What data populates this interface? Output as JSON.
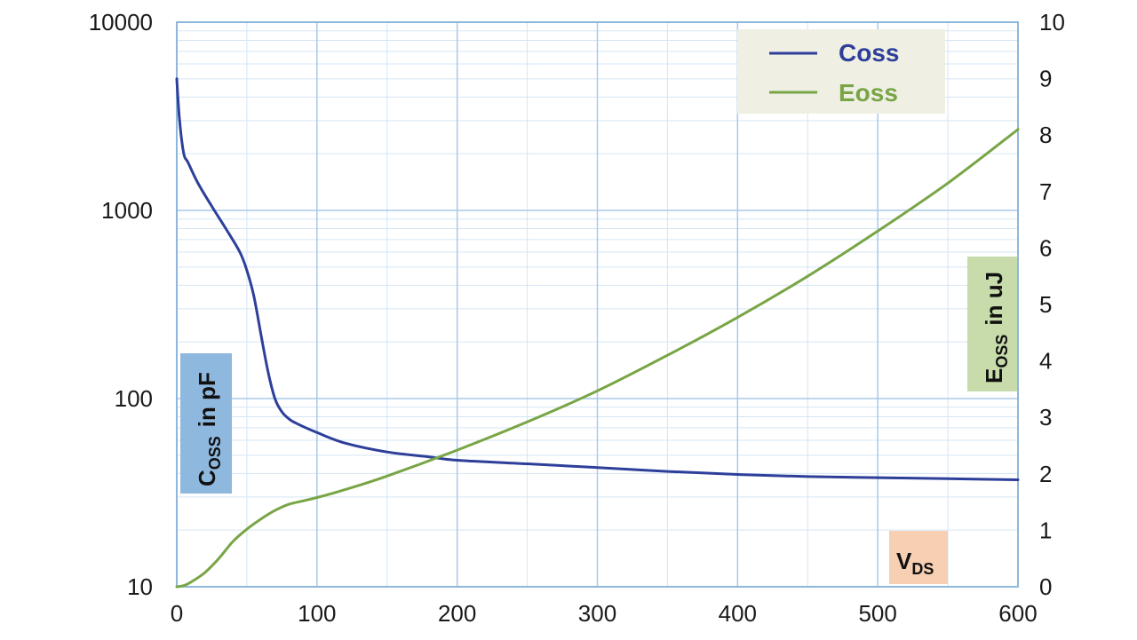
{
  "chart_data": {
    "type": "line",
    "x_axis": {
      "label_main": "V",
      "label_sub": "DS",
      "range": [
        0,
        600
      ],
      "ticks": [
        "0",
        "100",
        "200",
        "300",
        "400",
        "500",
        "600"
      ]
    },
    "y_left": {
      "label_main": "C",
      "label_sub": "OSS",
      "label_rest": "in pF",
      "scale": "log",
      "range": [
        10,
        10000
      ],
      "ticks": [
        "10",
        "100",
        "1000",
        "10000"
      ]
    },
    "y_right": {
      "label_main": "E",
      "label_sub": "OSS",
      "label_rest": "in uJ",
      "scale": "linear",
      "range": [
        0,
        10
      ],
      "ticks": [
        "0",
        "1",
        "2",
        "3",
        "4",
        "5",
        "6",
        "7",
        "8",
        "9",
        "10"
      ]
    },
    "grid": true,
    "legend_position": "top-right",
    "series": [
      {
        "name": "Coss",
        "axis": "left",
        "color": "#2e3f9a",
        "x": [
          0,
          2,
          5,
          8,
          15,
          25,
          35,
          45,
          50,
          55,
          60,
          65,
          70,
          75,
          80,
          85,
          100,
          120,
          150,
          180,
          200,
          250,
          300,
          350,
          400,
          450,
          500,
          550,
          600
        ],
        "y": [
          5000,
          3000,
          2000,
          1800,
          1400,
          1050,
          800,
          600,
          480,
          350,
          220,
          140,
          100,
          85,
          78,
          74,
          66,
          58,
          52,
          49,
          47,
          45,
          43,
          41,
          39.5,
          38.5,
          38,
          37.5,
          37
        ]
      },
      {
        "name": "Eoss",
        "axis": "right",
        "color": "#78a545",
        "x": [
          0,
          5,
          10,
          20,
          30,
          40,
          50,
          60,
          70,
          80,
          90,
          100,
          120,
          150,
          200,
          250,
          300,
          350,
          400,
          450,
          500,
          550,
          600
        ],
        "y": [
          0,
          0.02,
          0.08,
          0.25,
          0.5,
          0.8,
          1.02,
          1.2,
          1.35,
          1.46,
          1.52,
          1.58,
          1.72,
          1.96,
          2.42,
          2.92,
          3.47,
          4.1,
          4.77,
          5.5,
          6.3,
          7.15,
          8.1
        ]
      }
    ]
  },
  "colors": {
    "plot_border": "#8fb7dc",
    "grid_major": "#a9c9e8",
    "grid_minor": "#d4e5f5",
    "legend_bg": "#efefe4",
    "coss_tag_bg": "#8fb8df",
    "eoss_tag_bg": "#c7dcaa",
    "vds_tag_bg": "#f7cfb3"
  }
}
